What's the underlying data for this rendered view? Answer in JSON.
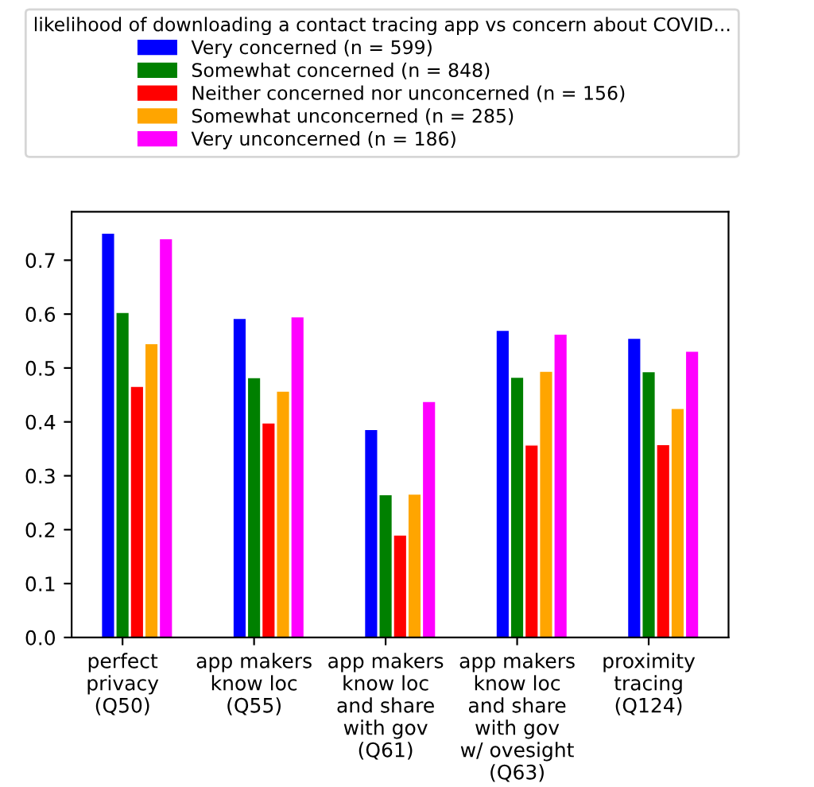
{
  "chart_data": {
    "type": "bar",
    "categories": [
      "perfect\nprivacy\n(Q50)",
      "app makers\nknow loc\n(Q55)",
      "app makers\nknow loc\nand share\nwith gov\n(Q61)",
      "app makers\nknow loc\nand share\nwith gov\nw/ ovesight\n(Q63)",
      "proximity\ntracing\n(Q124)"
    ],
    "legend_title": "likelihood of downloading a contact tracing app vs concern about COVID...",
    "series": [
      {
        "name": "Very concerned (n = 599)",
        "color": "#0000ff",
        "values": [
          0.75,
          0.592,
          0.386,
          0.57,
          0.555
        ]
      },
      {
        "name": "Somewhat concerned (n = 848)",
        "color": "#008000",
        "values": [
          0.603,
          0.482,
          0.265,
          0.483,
          0.493
        ]
      },
      {
        "name": "Neither concerned nor unconcerned (n = 156)",
        "color": "#ff0000",
        "values": [
          0.466,
          0.398,
          0.19,
          0.357,
          0.358
        ]
      },
      {
        "name": "Somewhat unconcerned (n = 285)",
        "color": "#ffa500",
        "values": [
          0.545,
          0.457,
          0.266,
          0.494,
          0.425
        ]
      },
      {
        "name": "Very unconcerned (n = 186)",
        "color": "#ff00ff",
        "values": [
          0.74,
          0.595,
          0.438,
          0.563,
          0.531
        ]
      }
    ],
    "ylim": [
      0,
      0.79
    ],
    "yticks": [
      {
        "value": 0,
        "label": "0.0"
      },
      0.1,
      0.2,
      0.3,
      0.4,
      0.5,
      0.6,
      0.7
    ],
    "legend": "top",
    "grid": false
  }
}
